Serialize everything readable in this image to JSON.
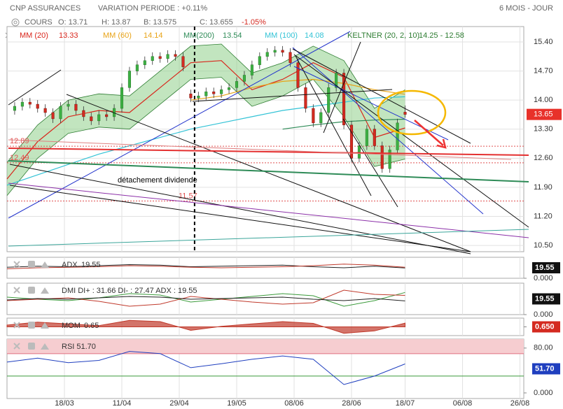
{
  "chart_data": [
    {
      "type": "candlestick",
      "title": "CNP ASSURANCES",
      "variation": "VARIATION PERIODE : +0.11%",
      "period": "6 MOIS - JOUR",
      "quote": {
        "label": "COURS",
        "open": "O: 13.71",
        "high": "H: 13.87",
        "low": "B: 13.575",
        "close": "C: 13.655",
        "change": "-1.05%"
      },
      "x": [
        2,
        4,
        6,
        8,
        10,
        12,
        14,
        16,
        18,
        20,
        22,
        24,
        26,
        28,
        30,
        32,
        34,
        36,
        38,
        40,
        42,
        44,
        46,
        48,
        50,
        52,
        54,
        56,
        58,
        60,
        62,
        64,
        66,
        68,
        70,
        72,
        74,
        76,
        78,
        80,
        82,
        84,
        86,
        88,
        90,
        92,
        94,
        96,
        98,
        100,
        102,
        104
      ],
      "open": [
        13.75,
        13.85,
        13.95,
        13.9,
        13.8,
        13.7,
        13.55,
        13.85,
        13.9,
        13.75,
        13.6,
        13.5,
        13.65,
        13.6,
        13.8,
        14.3,
        14.7,
        14.85,
        14.95,
        15.05,
        15.0,
        15.1,
        15.05,
        14.15,
        14.05,
        14.1,
        14.2,
        14.15,
        14.25,
        14.3,
        14.45,
        14.6,
        14.85,
        15.05,
        15.15,
        15.2,
        15.15,
        14.9,
        14.3,
        13.8,
        13.45,
        13.7,
        14.3,
        14.65,
        13.4,
        12.6,
        12.9,
        13.3,
        12.9,
        12.35,
        12.8,
        13.71
      ],
      "high": [
        13.95,
        14.05,
        14.05,
        14.0,
        13.9,
        13.8,
        13.95,
        14.0,
        14.0,
        13.85,
        13.7,
        13.75,
        13.75,
        13.9,
        14.4,
        14.8,
        14.95,
        15.05,
        15.15,
        15.15,
        15.2,
        15.2,
        15.15,
        14.25,
        14.2,
        14.3,
        14.3,
        14.35,
        14.4,
        14.55,
        14.7,
        14.95,
        15.15,
        15.25,
        15.3,
        15.3,
        15.25,
        15.0,
        14.4,
        13.9,
        13.8,
        14.4,
        14.75,
        14.75,
        13.5,
        13.0,
        13.4,
        13.4,
        13.0,
        12.9,
        13.55,
        13.87
      ],
      "low": [
        13.65,
        13.75,
        13.8,
        13.7,
        13.6,
        13.45,
        13.45,
        13.75,
        13.65,
        13.5,
        13.4,
        13.4,
        13.5,
        13.5,
        13.7,
        14.2,
        14.6,
        14.75,
        14.85,
        14.9,
        14.9,
        14.95,
        14.7,
        13.95,
        13.95,
        14.0,
        14.05,
        14.05,
        14.15,
        14.2,
        14.35,
        14.5,
        14.75,
        14.95,
        15.05,
        15.05,
        14.8,
        14.2,
        13.7,
        13.35,
        13.35,
        13.6,
        14.2,
        13.3,
        12.5,
        12.5,
        12.8,
        12.8,
        12.25,
        12.25,
        12.7,
        13.575
      ],
      "close": [
        13.85,
        13.95,
        13.9,
        13.8,
        13.7,
        13.55,
        13.85,
        13.9,
        13.75,
        13.6,
        13.5,
        13.65,
        13.6,
        13.8,
        14.3,
        14.7,
        14.85,
        14.95,
        15.05,
        15.0,
        15.1,
        15.05,
        14.8,
        14.05,
        14.1,
        14.2,
        14.15,
        14.25,
        14.3,
        14.45,
        14.6,
        14.85,
        15.05,
        15.15,
        15.2,
        15.15,
        14.9,
        14.3,
        13.8,
        13.45,
        13.7,
        14.3,
        14.65,
        13.4,
        12.6,
        12.9,
        13.3,
        12.9,
        12.35,
        12.8,
        13.45,
        13.655
      ],
      "up_color": "#3cb043",
      "down_color": "#d42a20",
      "last_label": "13.65",
      "last_color": "#e8312a",
      "overlay_x": [
        0,
        8,
        16,
        24,
        32,
        40,
        48,
        56,
        64,
        72,
        80,
        88,
        96,
        104
      ],
      "keltner": {
        "name": "KELTNER (20, 2, 10)",
        "legend_value": "14.25 - 12.58",
        "color": "#2e7d32",
        "fill": "#8fcf8a",
        "upper": [
          12.5,
          13.4,
          14.0,
          14.15,
          14.1,
          14.7,
          15.3,
          15.35,
          14.65,
          14.9,
          15.3,
          14.95,
          13.8,
          14.25
        ],
        "lower": [
          11.7,
          12.6,
          13.2,
          13.35,
          13.3,
          13.9,
          14.5,
          14.55,
          13.85,
          14.1,
          14.5,
          13.6,
          12.4,
          12.58
        ]
      },
      "overlays": [
        {
          "name": "MM (20)",
          "color": "#d9261c",
          "values": [
            12.1,
            13.0,
            13.6,
            13.75,
            13.7,
            14.3,
            14.9,
            14.95,
            14.25,
            14.5,
            14.9,
            14.55,
            13.1,
            13.33
          ]
        },
        {
          "name": "MM (60)",
          "color": "#e8a317",
          "values": [
            null,
            null,
            null,
            null,
            null,
            null,
            14.0,
            14.1,
            14.3,
            14.45,
            14.5,
            14.4,
            14.25,
            14.14
          ]
        },
        {
          "name": "MM(200)",
          "color": "#2e8b57",
          "values": [
            null,
            null,
            null,
            null,
            null,
            null,
            null,
            null,
            null,
            13.3,
            13.4,
            13.48,
            13.52,
            13.54
          ]
        },
        {
          "name": "MM (100)",
          "color": "#33c3d6",
          "values": [
            11.95,
            12.2,
            12.45,
            12.7,
            12.9,
            13.1,
            13.3,
            13.45,
            13.6,
            13.75,
            13.85,
            13.95,
            14.05,
            14.08
          ]
        }
      ],
      "levels": [
        12.89,
        12.49,
        11.57
      ],
      "level_color": "#e05050",
      "annotation": {
        "text": "détachement dividende",
        "x": 49
      },
      "xlim": [
        0,
        135
      ],
      "xticks": [
        {
          "value": 15,
          "label": "18/03"
        },
        {
          "value": 30,
          "label": "11/04"
        },
        {
          "value": 45,
          "label": "29/04"
        },
        {
          "value": 60,
          "label": "19/05"
        },
        {
          "value": 75,
          "label": "08/06"
        },
        {
          "value": 90,
          "label": "28/06"
        },
        {
          "value": 104,
          "label": "18/07"
        },
        {
          "value": 119,
          "label": "06/08"
        },
        {
          "value": 134,
          "label": "26/08"
        }
      ],
      "ylim": [
        10.35,
        15.77
      ],
      "yticks": [
        {
          "value": 15.4,
          "label": "15.40"
        },
        {
          "value": 14.7,
          "label": "14.70"
        },
        {
          "value": 14.0,
          "label": "14.00"
        },
        {
          "value": 13.3,
          "label": "13.30"
        },
        {
          "value": 12.6,
          "label": "12.60"
        },
        {
          "value": 11.9,
          "label": "11.90"
        },
        {
          "value": 11.2,
          "label": "11.20"
        },
        {
          "value": 10.5,
          "label": "10.50"
        }
      ],
      "grid": true
    },
    {
      "type": "line",
      "label": "ADX",
      "value_box": "19.55",
      "box_color": "#111111",
      "x": [
        0,
        8,
        16,
        24,
        32,
        40,
        48,
        56,
        64,
        72,
        80,
        88,
        96,
        104
      ],
      "xlim": [
        0,
        135
      ],
      "ylim": [
        0,
        40
      ],
      "yticks": [
        {
          "value": 0,
          "label": "0.000"
        }
      ],
      "series": [
        {
          "color": "#222222",
          "values": [
            21,
            23,
            22,
            24,
            26,
            25,
            22,
            23,
            24,
            25,
            22,
            20,
            23,
            19.55
          ]
        },
        {
          "color": "#c0392b",
          "values": [
            18,
            20,
            21,
            22,
            24,
            23,
            21,
            20,
            21,
            22,
            24,
            27,
            25,
            21
          ]
        }
      ]
    },
    {
      "type": "line",
      "label": "DMI DI+ : 31.66 DI- : 27.47 ADX : 19.55",
      "value_box": "19.55",
      "box_color": "#111111",
      "x": [
        0,
        8,
        16,
        24,
        32,
        40,
        48,
        56,
        64,
        72,
        80,
        88,
        96,
        104
      ],
      "xlim": [
        0,
        135
      ],
      "ylim": [
        0,
        45
      ],
      "yticks": [
        {
          "value": 0,
          "label": "0.000"
        }
      ],
      "series": [
        {
          "color": "#3a9a3a",
          "values": [
            25,
            22,
            20,
            24,
            30,
            28,
            18,
            22,
            26,
            30,
            27,
            12,
            20,
            31.66
          ]
        },
        {
          "color": "#c0392b",
          "values": [
            20,
            22,
            24,
            19,
            12,
            15,
            26,
            22,
            18,
            15,
            17,
            35,
            29,
            27.47
          ]
        },
        {
          "color": "#222222",
          "values": [
            21,
            23,
            22,
            24,
            26,
            25,
            22,
            23,
            24,
            25,
            22,
            20,
            23,
            19.55
          ]
        }
      ]
    },
    {
      "type": "area",
      "label": "MOM",
      "value_box": "0.650",
      "box_color": "#d42a20",
      "x": [
        0,
        8,
        16,
        24,
        32,
        40,
        48,
        56,
        64,
        72,
        80,
        88,
        96,
        104
      ],
      "xlim": [
        0,
        135
      ],
      "ylim": [
        -1.5,
        1.5
      ],
      "yticks": [
        {
          "value": 0,
          "label": "0.000"
        }
      ],
      "series": [
        {
          "color": "#c0392b",
          "values": [
            0.3,
            0.8,
            0.5,
            0.2,
            1.1,
            0.9,
            -0.6,
            0.1,
            0.5,
            0.9,
            0.6,
            -1.1,
            -0.7,
            0.65
          ]
        }
      ]
    },
    {
      "type": "line",
      "label": "RSI 51.70",
      "value_box": "51.70",
      "box_color": "#1f3fbf",
      "x": [
        0,
        8,
        16,
        24,
        32,
        40,
        48,
        56,
        64,
        72,
        80,
        88,
        96,
        104
      ],
      "xlim": [
        0,
        135
      ],
      "ylim": [
        -10,
        96
      ],
      "yticks": [
        {
          "value": 80,
          "label": "80.00"
        },
        {
          "value": 0,
          "label": "0.000"
        }
      ],
      "levels": [
        70,
        30
      ],
      "series": [
        {
          "color": "#1f3fbf",
          "values": [
            55,
            62,
            54,
            58,
            74,
            70,
            45,
            52,
            60,
            66,
            60,
            15,
            30,
            51.7
          ]
        }
      ]
    }
  ]
}
